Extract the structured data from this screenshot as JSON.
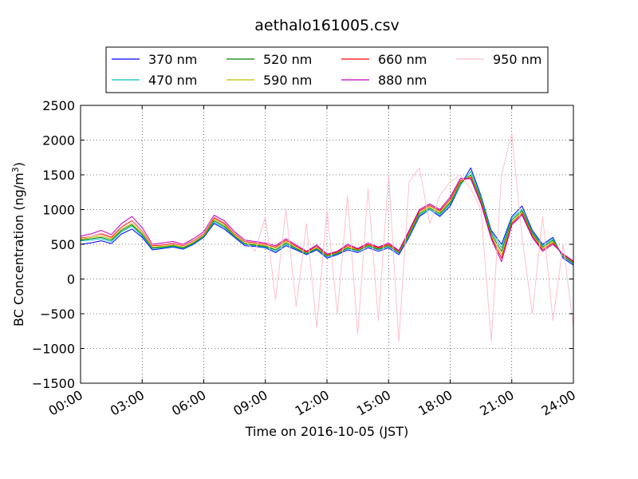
{
  "chart_data": {
    "type": "line",
    "title": "aethalo161005.csv",
    "xlabel": "Time on 2016-10-05 (JST)",
    "ylabel": "BC Concentration (ng/m",
    "ylabel_unit_sup": "3",
    "ylabel_close": ")",
    "xlim": [
      0,
      24
    ],
    "ylim": [
      -1500,
      2500
    ],
    "x_ticks": [
      0,
      3,
      6,
      9,
      12,
      15,
      18,
      21,
      24
    ],
    "x_tick_labels": [
      "00:00",
      "03:00",
      "06:00",
      "09:00",
      "12:00",
      "15:00",
      "18:00",
      "21:00",
      "24:00"
    ],
    "y_ticks": [
      -1500,
      -1000,
      -500,
      0,
      500,
      1000,
      1500,
      2000,
      2500
    ],
    "y_tick_labels": [
      "−1500",
      "−1000",
      "−500",
      "0",
      "500",
      "1000",
      "1500",
      "2000",
      "2500"
    ],
    "grid": true,
    "legend_position": "top-center",
    "x": [
      0,
      0.5,
      1,
      1.5,
      2,
      2.5,
      3,
      3.5,
      4,
      4.5,
      5,
      5.5,
      6,
      6.5,
      7,
      7.5,
      8,
      8.5,
      9,
      9.5,
      10,
      10.5,
      11,
      11.5,
      12,
      12.5,
      13,
      13.5,
      14,
      14.5,
      15,
      15.5,
      16,
      16.5,
      17,
      17.5,
      18,
      18.5,
      19,
      19.5,
      20,
      20.5,
      21,
      21.5,
      22,
      22.5,
      23,
      23.5,
      24
    ],
    "series": [
      {
        "name": "370 nm",
        "color": "#0000ff",
        "values": [
          500,
          520,
          550,
          510,
          650,
          720,
          600,
          420,
          440,
          460,
          430,
          500,
          600,
          800,
          720,
          600,
          480,
          470,
          450,
          380,
          480,
          420,
          350,
          420,
          300,
          350,
          420,
          380,
          450,
          400,
          450,
          350,
          600,
          900,
          1000,
          900,
          1050,
          1350,
          1600,
          1200,
          700,
          500,
          900,
          1050,
          700,
          500,
          600,
          300,
          200
        ]
      },
      {
        "name": "470 nm",
        "color": "#00bfbf",
        "values": [
          550,
          560,
          580,
          540,
          680,
          760,
          620,
          440,
          450,
          470,
          440,
          510,
          610,
          820,
          740,
          610,
          500,
          480,
          460,
          400,
          500,
          430,
          360,
          430,
          320,
          360,
          440,
          400,
          470,
          420,
          470,
          370,
          620,
          920,
          1000,
          920,
          1080,
          1350,
          1550,
          1180,
          680,
          450,
          880,
          1000,
          680,
          480,
          580,
          320,
          220
        ]
      },
      {
        "name": "520 nm",
        "color": "#008000",
        "values": [
          560,
          580,
          600,
          560,
          700,
          780,
          640,
          450,
          460,
          480,
          450,
          520,
          620,
          840,
          760,
          620,
          510,
          490,
          470,
          420,
          520,
          440,
          370,
          440,
          330,
          370,
          450,
          410,
          480,
          430,
          480,
          380,
          640,
          940,
          1020,
          940,
          1100,
          1380,
          1500,
          1150,
          650,
          400,
          850,
          980,
          660,
          460,
          560,
          330,
          230
        ]
      },
      {
        "name": "590 nm",
        "color": "#bfbf00",
        "values": [
          570,
          600,
          620,
          580,
          720,
          800,
          660,
          460,
          470,
          490,
          460,
          530,
          630,
          860,
          780,
          630,
          520,
          500,
          480,
          440,
          540,
          450,
          380,
          450,
          340,
          380,
          460,
          420,
          490,
          440,
          490,
          390,
          660,
          960,
          1040,
          960,
          1120,
          1400,
          1480,
          1120,
          620,
          350,
          820,
          960,
          640,
          440,
          540,
          340,
          240
        ]
      },
      {
        "name": "660 nm",
        "color": "#ff0000",
        "values": [
          590,
          620,
          650,
          600,
          750,
          840,
          690,
          480,
          490,
          510,
          480,
          550,
          650,
          880,
          800,
          650,
          540,
          520,
          500,
          460,
          560,
          470,
          390,
          470,
          350,
          390,
          480,
          430,
          500,
          450,
          500,
          400,
          680,
          980,
          1060,
          980,
          1150,
          1420,
          1460,
          1100,
          600,
          300,
          800,
          940,
          620,
          420,
          520,
          350,
          250
        ]
      },
      {
        "name": "880 nm",
        "color": "#bf00bf",
        "values": [
          620,
          650,
          700,
          640,
          800,
          900,
          740,
          500,
          520,
          540,
          500,
          580,
          680,
          920,
          840,
          680,
          560,
          540,
          520,
          480,
          580,
          490,
          400,
          490,
          360,
          400,
          500,
          440,
          520,
          460,
          520,
          410,
          700,
          1000,
          1080,
          1000,
          1180,
          1450,
          1440,
          1080,
          580,
          250,
          780,
          920,
          600,
          400,
          500,
          360,
          260
        ]
      },
      {
        "name": "950 nm",
        "color": "#ffc0cb",
        "values": [
          600,
          620,
          660,
          620,
          760,
          850,
          700,
          490,
          500,
          520,
          490,
          560,
          660,
          900,
          820,
          660,
          550,
          400,
          900,
          -300,
          1000,
          -400,
          800,
          -700,
          1000,
          -500,
          1200,
          -800,
          1300,
          -600,
          1500,
          -900,
          1400,
          1600,
          800,
          1200,
          1400,
          1500,
          1300,
          1000,
          -900,
          1500,
          2100,
          600,
          -500,
          900,
          -600,
          500,
          -700
        ]
      }
    ]
  }
}
